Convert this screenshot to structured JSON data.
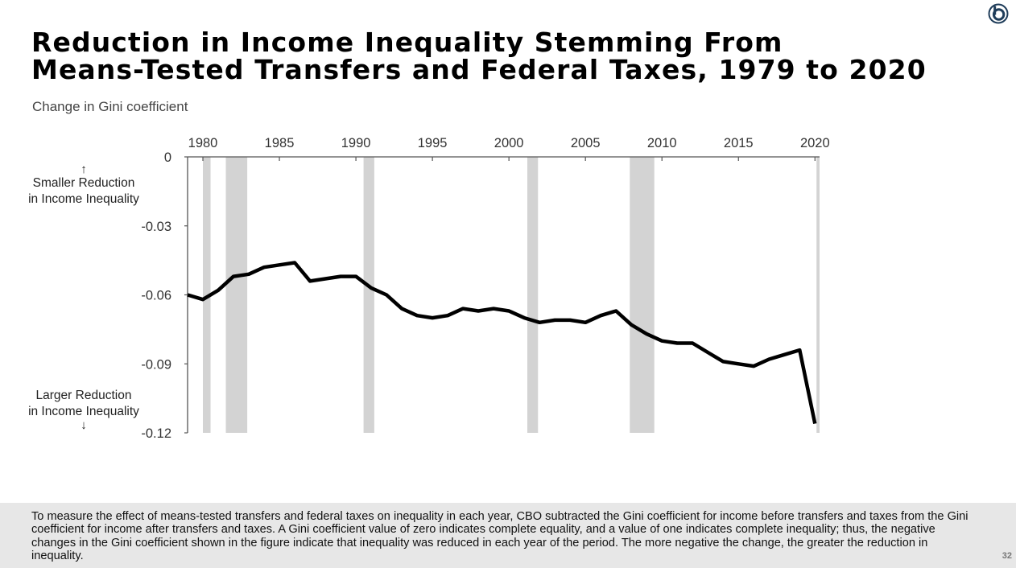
{
  "title": {
    "line1": "Reduction in Income Inequality Stemming From",
    "line2": "Means-Tested Transfers and Federal Taxes, 1979 to 2020"
  },
  "axis_caption": "Change in Gini coefficient",
  "direction_labels": {
    "top_line1": "Smaller Reduction",
    "top_line2": "in Income Inequality",
    "top_arrow": "↑",
    "bottom_line1": "Larger Reduction",
    "bottom_line2": "in Income Inequality",
    "bottom_arrow": "↓"
  },
  "footnote": "To measure the effect of means-tested transfers and federal taxes on inequality in each year, CBO subtracted the Gini coefficient for income before transfers and taxes from the Gini coefficient for income after transfers and taxes. A Gini coefficient value of zero indicates complete equality, and a value of one indicates complete inequality; thus, the negative changes in the Gini coefficient shown in the figure indicate that inequality was reduced in each year of the period. The more negative the change, the greater the reduction in inequality.",
  "page_number": "32",
  "logo_icon": "cbo-logo-icon",
  "colors": {
    "line": "#000000",
    "recession_band": "#d3d3d3",
    "footer_background": "#e7e7e7",
    "logo": "#1f3d5a"
  },
  "chart_data": {
    "type": "line",
    "x_ticks": [
      1980,
      1985,
      1990,
      1995,
      2000,
      2005,
      2010,
      2015,
      2020
    ],
    "y_ticks": [
      0,
      -0.03,
      -0.06,
      -0.09,
      -0.12
    ],
    "y_tick_labels": [
      "0",
      "-0.03",
      "-0.06",
      "-0.09",
      "-0.12"
    ],
    "x_axis_position": "top",
    "xlim": [
      1979,
      2020
    ],
    "ylim": [
      -0.12,
      0
    ],
    "grid": false,
    "recession_bands": [
      [
        1980.0,
        1980.5
      ],
      [
        1981.5,
        1982.9
      ],
      [
        1990.5,
        1991.2
      ],
      [
        2001.2,
        2001.9
      ],
      [
        2007.9,
        2009.5
      ],
      [
        2020.1,
        2020.3
      ]
    ],
    "series": [
      {
        "x": [
          1979,
          1980,
          1981,
          1982,
          1983,
          1984,
          1985,
          1986,
          1987,
          1988,
          1989,
          1990,
          1991,
          1992,
          1993,
          1994,
          1995,
          1996,
          1997,
          1998,
          1999,
          2000,
          2001,
          2002,
          2003,
          2004,
          2005,
          2006,
          2007,
          2008,
          2009,
          2010,
          2011,
          2012,
          2013,
          2014,
          2015,
          2016,
          2017,
          2018,
          2019,
          2020
        ],
        "y": [
          -0.06,
          -0.062,
          -0.058,
          -0.052,
          -0.051,
          -0.048,
          -0.047,
          -0.046,
          -0.054,
          -0.053,
          -0.052,
          -0.052,
          -0.057,
          -0.06,
          -0.066,
          -0.069,
          -0.07,
          -0.069,
          -0.066,
          -0.067,
          -0.066,
          -0.067,
          -0.07,
          -0.072,
          -0.071,
          -0.071,
          -0.072,
          -0.069,
          -0.067,
          -0.073,
          -0.077,
          -0.08,
          -0.081,
          -0.081,
          -0.085,
          -0.089,
          -0.09,
          -0.091,
          -0.088,
          -0.086,
          -0.084,
          -0.116
        ]
      }
    ]
  }
}
